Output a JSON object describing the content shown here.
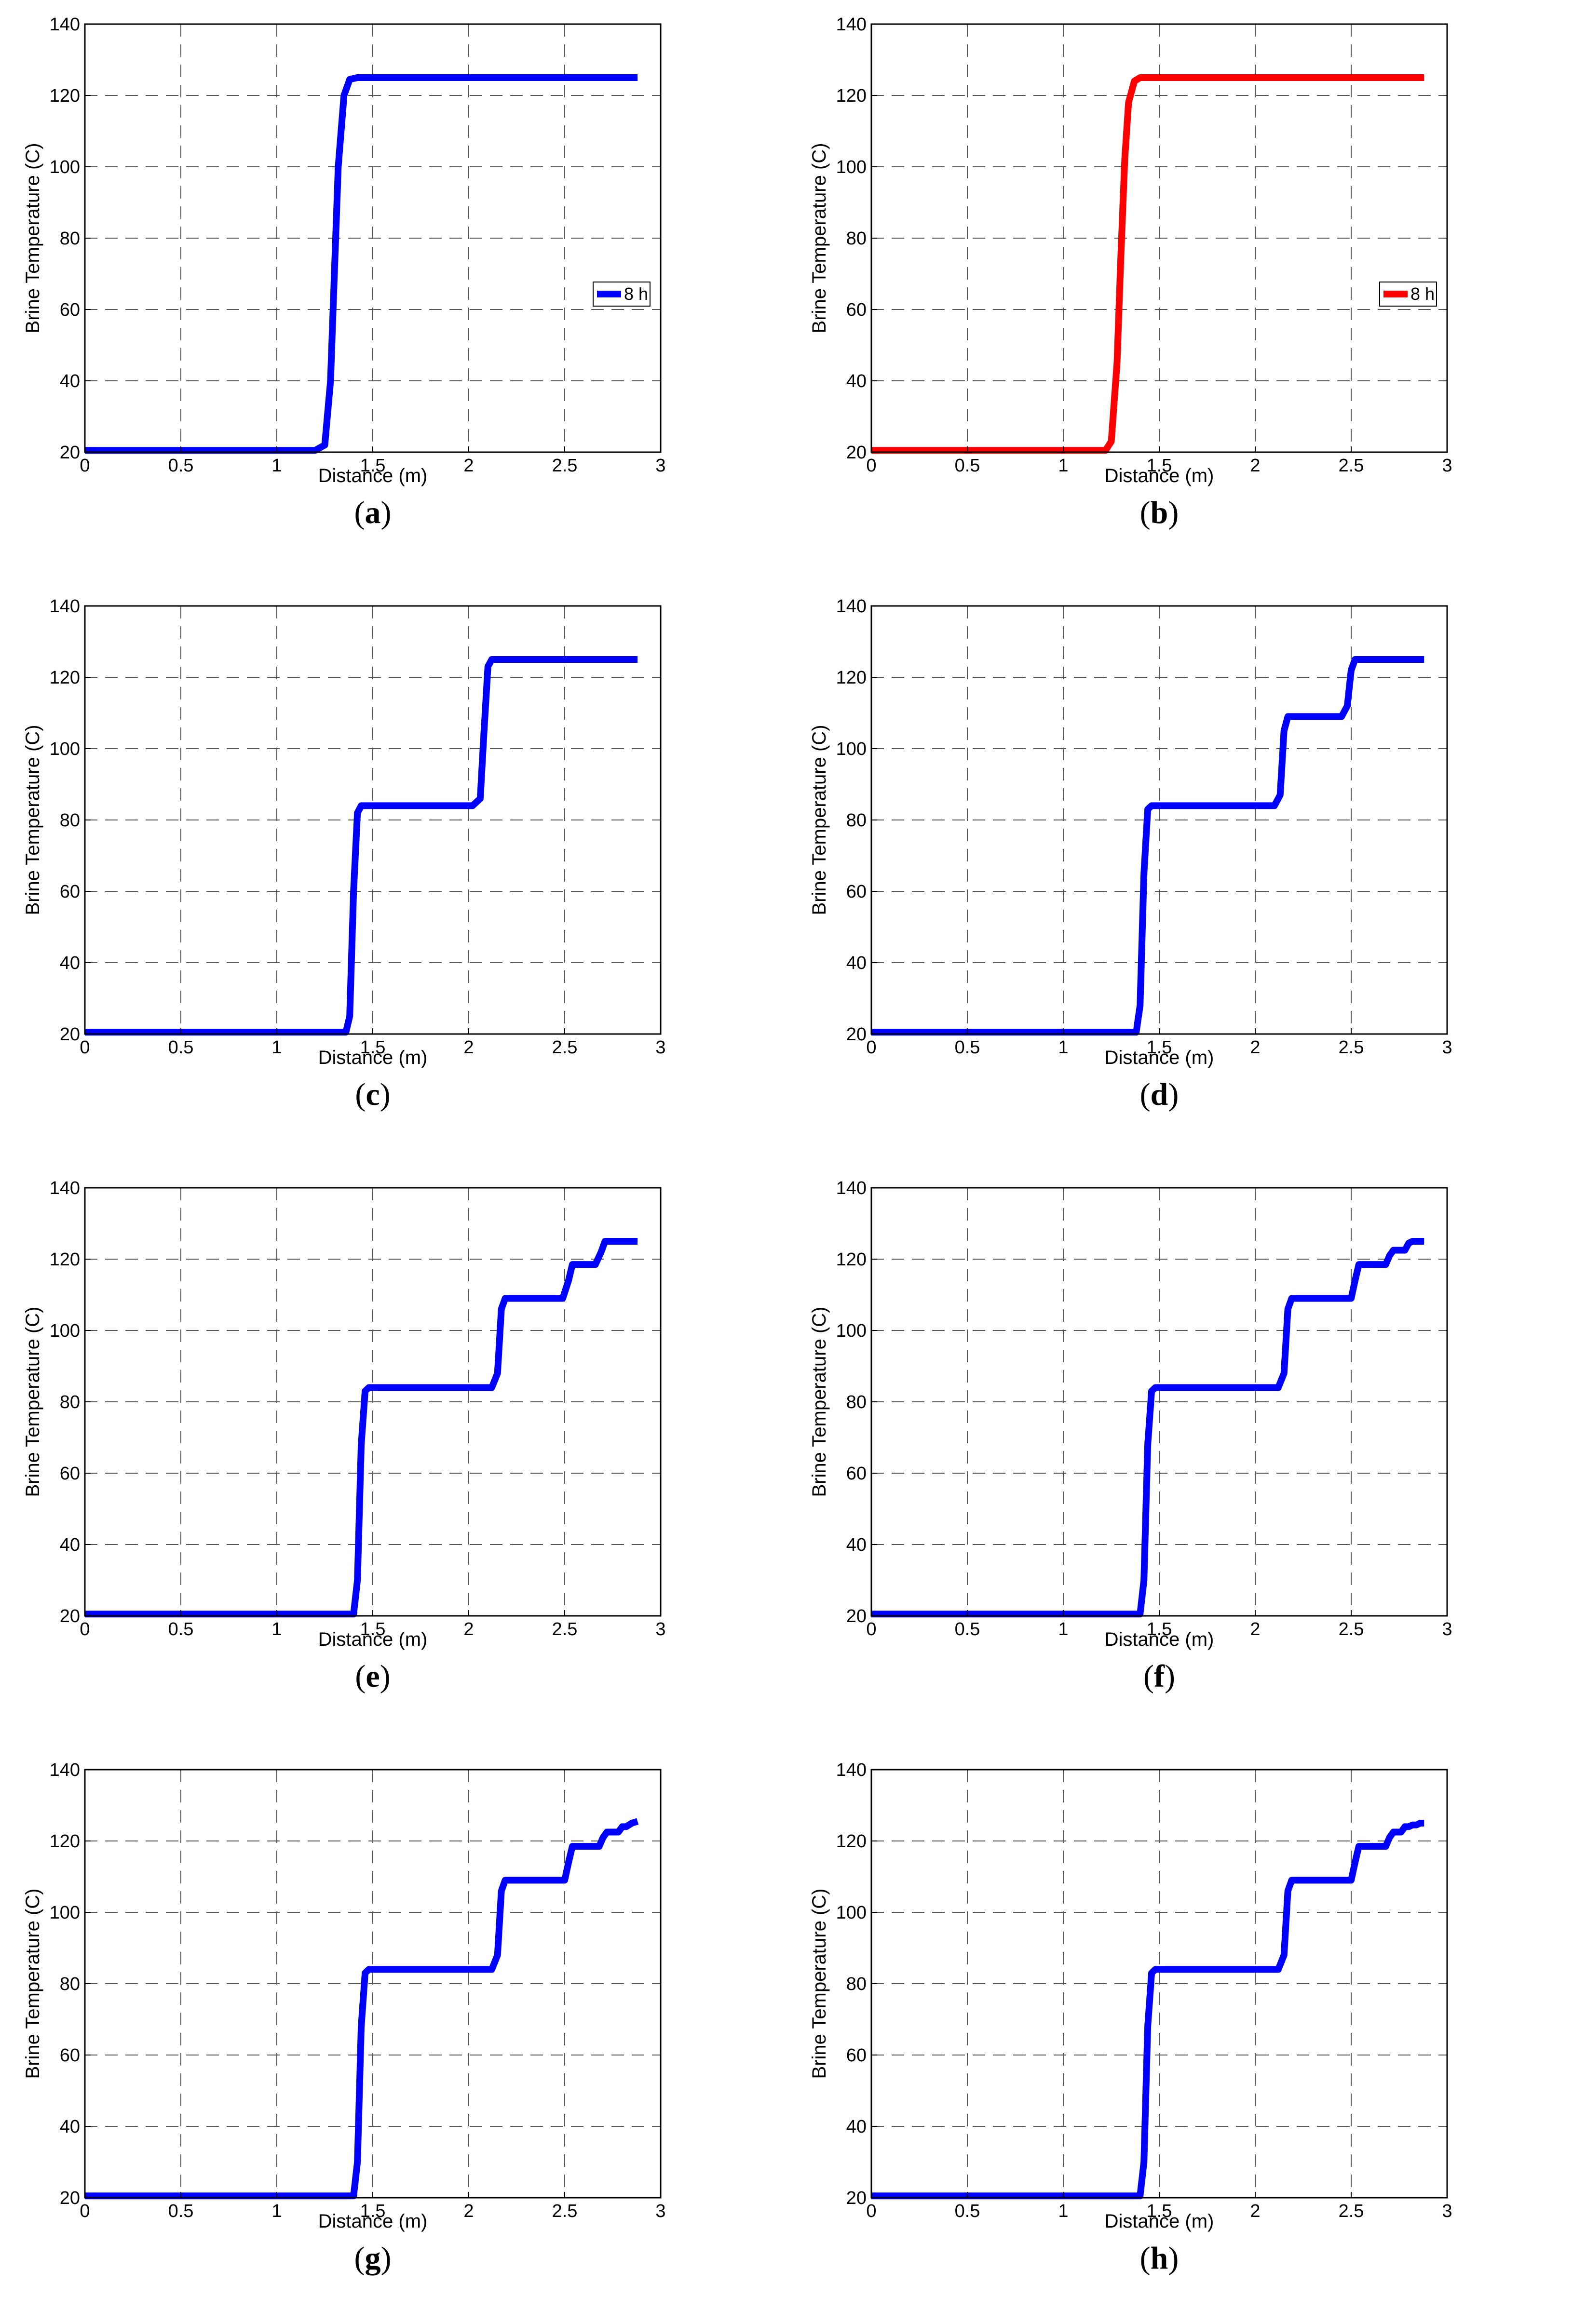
{
  "chart_data": [
    {
      "panel": "a",
      "type": "line",
      "xlabel": "Distance (m)",
      "ylabel": "Brine Temperature (C)",
      "xlim": [
        0,
        3
      ],
      "ylim": [
        20,
        140
      ],
      "xticks": [
        "0",
        "0.5",
        "1",
        "1.5",
        "2",
        "2.5",
        "3"
      ],
      "yticks": [
        "20",
        "40",
        "60",
        "80",
        "100",
        "120",
        "140"
      ],
      "grid": true,
      "legend_position": "right",
      "series": [
        {
          "name": "8 h",
          "color": "#0000ff",
          "x": [
            0,
            1.2,
            1.25,
            1.28,
            1.3,
            1.32,
            1.35,
            1.38,
            1.42,
            2.88
          ],
          "y": [
            20.5,
            20.5,
            22,
            40,
            70,
            100,
            120,
            124.5,
            125,
            125
          ]
        }
      ]
    },
    {
      "panel": "b",
      "type": "line",
      "xlabel": "Distance (m)",
      "ylabel": "Brine Temperature (C)",
      "xlim": [
        0,
        3
      ],
      "ylim": [
        20,
        140
      ],
      "xticks": [
        "0",
        "0.5",
        "1",
        "1.5",
        "2",
        "2.5",
        "3"
      ],
      "yticks": [
        "20",
        "40",
        "60",
        "80",
        "100",
        "120",
        "140"
      ],
      "grid": true,
      "legend_position": "right",
      "series": [
        {
          "name": "8 h",
          "color": "#ff0000",
          "x": [
            0,
            1.22,
            1.25,
            1.28,
            1.3,
            1.32,
            1.34,
            1.37,
            1.4,
            2.88
          ],
          "y": [
            20.5,
            20.5,
            23,
            45,
            75,
            102,
            118,
            124,
            125,
            125
          ]
        }
      ]
    },
    {
      "panel": "c",
      "type": "line",
      "xlabel": "Distance (m)",
      "ylabel": "Brine Temperature (C)",
      "xlim": [
        0,
        3
      ],
      "ylim": [
        20,
        140
      ],
      "xticks": [
        "0",
        "0.5",
        "1",
        "1.5",
        "2",
        "2.5",
        "3"
      ],
      "yticks": [
        "20",
        "40",
        "60",
        "80",
        "100",
        "120",
        "140"
      ],
      "grid": true,
      "series": [
        {
          "color": "#0000ff",
          "x": [
            0,
            1.36,
            1.38,
            1.4,
            1.42,
            1.44,
            2.02,
            2.06,
            2.08,
            2.1,
            2.12,
            2.88
          ],
          "y": [
            20.5,
            20.5,
            25,
            60,
            82,
            84,
            84,
            86,
            105,
            123,
            125,
            125
          ]
        }
      ]
    },
    {
      "panel": "d",
      "type": "line",
      "xlabel": "Distance (m)",
      "ylabel": "Brine Temperature (C)",
      "xlim": [
        0,
        3
      ],
      "ylim": [
        20,
        140
      ],
      "xticks": [
        "0",
        "0.5",
        "1",
        "1.5",
        "2",
        "2.5",
        "3"
      ],
      "yticks": [
        "20",
        "40",
        "60",
        "80",
        "100",
        "120",
        "140"
      ],
      "grid": true,
      "series": [
        {
          "color": "#0000ff",
          "x": [
            0,
            1.38,
            1.4,
            1.42,
            1.44,
            1.46,
            2.1,
            2.13,
            2.15,
            2.17,
            2.45,
            2.48,
            2.5,
            2.52,
            2.88
          ],
          "y": [
            20.5,
            20.5,
            28,
            65,
            83,
            84,
            84,
            87,
            105,
            109,
            109,
            112,
            122,
            125,
            125
          ]
        }
      ]
    },
    {
      "panel": "e",
      "type": "line",
      "xlabel": "Distance (m)",
      "ylabel": "Brine Temperature (C)",
      "xlim": [
        0,
        3
      ],
      "ylim": [
        20,
        140
      ],
      "xticks": [
        "0",
        "0.5",
        "1",
        "1.5",
        "2",
        "2.5",
        "3"
      ],
      "yticks": [
        "20",
        "40",
        "60",
        "80",
        "100",
        "120",
        "140"
      ],
      "grid": true,
      "series": [
        {
          "color": "#0000ff",
          "x": [
            0,
            1.4,
            1.42,
            1.44,
            1.46,
            1.48,
            2.12,
            2.15,
            2.17,
            2.19,
            2.49,
            2.52,
            2.54,
            2.66,
            2.69,
            2.71,
            2.88
          ],
          "y": [
            20.5,
            20.5,
            30,
            68,
            83,
            84,
            84,
            88,
            106,
            109,
            109,
            114,
            118.5,
            118.5,
            122,
            125,
            125
          ]
        }
      ]
    },
    {
      "panel": "f",
      "type": "line",
      "xlabel": "Distance (m)",
      "ylabel": "Brine Temperature (C)",
      "xlim": [
        0,
        3
      ],
      "ylim": [
        20,
        140
      ],
      "xticks": [
        "0",
        "0.5",
        "1",
        "1.5",
        "2",
        "2.5",
        "3"
      ],
      "yticks": [
        "20",
        "40",
        "60",
        "80",
        "100",
        "120",
        "140"
      ],
      "grid": true,
      "series": [
        {
          "color": "#0000ff",
          "x": [
            0,
            1.4,
            1.42,
            1.44,
            1.46,
            1.48,
            2.12,
            2.15,
            2.17,
            2.19,
            2.5,
            2.52,
            2.54,
            2.68,
            2.7,
            2.72,
            2.78,
            2.8,
            2.82,
            2.88
          ],
          "y": [
            20.5,
            20.5,
            30,
            68,
            83,
            84,
            84,
            88,
            106,
            109,
            109,
            114,
            118.5,
            118.5,
            121,
            122.5,
            122.5,
            124.5,
            125,
            125
          ]
        }
      ]
    },
    {
      "panel": "g",
      "type": "line",
      "xlabel": "Distance (m)",
      "ylabel": "Brine Temperature (C)",
      "xlim": [
        0,
        3
      ],
      "ylim": [
        20,
        140
      ],
      "xticks": [
        "0",
        "0.5",
        "1",
        "1.5",
        "2",
        "2.5",
        "3"
      ],
      "yticks": [
        "20",
        "40",
        "60",
        "80",
        "100",
        "120",
        "140"
      ],
      "grid": true,
      "series": [
        {
          "color": "#0000ff",
          "x": [
            0,
            1.4,
            1.42,
            1.44,
            1.46,
            1.48,
            2.12,
            2.15,
            2.17,
            2.19,
            2.5,
            2.52,
            2.54,
            2.68,
            2.7,
            2.72,
            2.78,
            2.8,
            2.82,
            2.85,
            2.88
          ],
          "y": [
            20.5,
            20.5,
            30,
            68,
            83,
            84,
            84,
            88,
            106,
            109,
            109,
            114,
            118.5,
            118.5,
            121,
            122.5,
            122.5,
            124,
            124,
            125,
            125.5
          ]
        }
      ]
    },
    {
      "panel": "h",
      "type": "line",
      "xlabel": "Distance (m)",
      "ylabel": "Brine Temperature (C)",
      "xlim": [
        0,
        3
      ],
      "ylim": [
        20,
        140
      ],
      "xticks": [
        "0",
        "0.5",
        "1",
        "1.5",
        "2",
        "2.5",
        "3"
      ],
      "yticks": [
        "20",
        "40",
        "60",
        "80",
        "100",
        "120",
        "140"
      ],
      "grid": true,
      "series": [
        {
          "color": "#0000ff",
          "x": [
            0,
            1.4,
            1.42,
            1.44,
            1.46,
            1.48,
            2.12,
            2.15,
            2.17,
            2.19,
            2.5,
            2.52,
            2.54,
            2.68,
            2.7,
            2.72,
            2.76,
            2.78,
            2.8,
            2.82,
            2.84,
            2.86,
            2.88
          ],
          "y": [
            20.5,
            20.5,
            30,
            68,
            83,
            84,
            84,
            88,
            106,
            109,
            109,
            114,
            118.5,
            118.5,
            121,
            122.5,
            122.5,
            124,
            124,
            124.5,
            124.5,
            125,
            125
          ]
        }
      ]
    }
  ],
  "captions": [
    "a",
    "b",
    "c",
    "d",
    "e",
    "f",
    "g",
    "h"
  ]
}
